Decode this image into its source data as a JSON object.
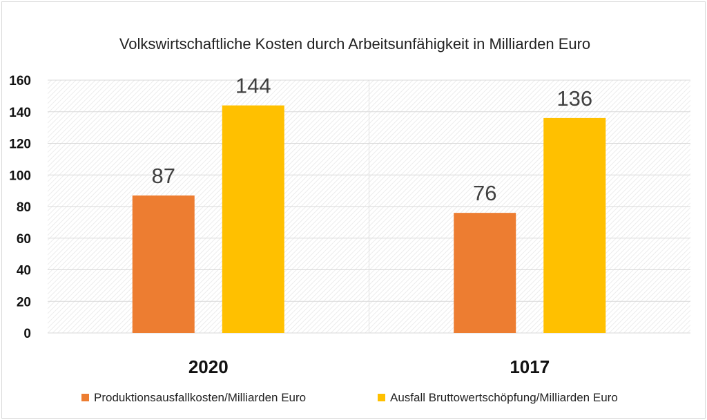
{
  "chart_data": {
    "type": "bar",
    "title": "Volkswirtschaftliche Kosten durch Arbeitsunfähigkeit in Milliarden Euro",
    "categories": [
      "2020",
      "1017"
    ],
    "series": [
      {
        "name": "Produktionsausfallkosten/Milliarden Euro",
        "color": "#ed7d31",
        "values": [
          87,
          76
        ]
      },
      {
        "name": "Ausfall Bruttowertschöpfung/Milliarden Euro",
        "color": "#ffc000",
        "values": [
          144,
          136
        ]
      }
    ],
    "ylim": [
      0,
      160
    ],
    "y_ticks": [
      0,
      20,
      40,
      60,
      80,
      100,
      120,
      140,
      160
    ],
    "xlabel": "",
    "ylabel": "",
    "grid": true,
    "legend_position": "bottom"
  }
}
